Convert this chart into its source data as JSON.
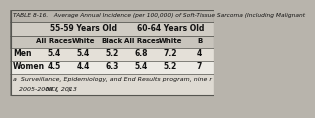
{
  "title": "TABLE 8-16.   Average Annual Incidence (per 100,000) of Soft-Tissue Sarcoma (Including Malignant",
  "bg_title": "#b8b4ac",
  "bg_header": "#d0ccc4",
  "bg_subheader": "#c8c4bc",
  "bg_row1": "#e4e0d8",
  "bg_row2": "#eceae4",
  "bg_footnote": "#dedad2",
  "border_color": "#555550",
  "text_color": "#111111",
  "title_fontsize": 4.2,
  "header_fontsize": 5.5,
  "subheader_fontsize": 5.0,
  "data_fontsize": 5.5,
  "footnote_fontsize": 4.5,
  "group_labels": [
    "55-59 Years Old",
    "60-64 Years Old"
  ],
  "sub_cols": [
    "All Races",
    "White",
    "Black",
    "All Races",
    "White",
    "B"
  ],
  "rows": [
    {
      "label": "Men",
      "values": [
        "5.4",
        "5.4",
        "5.2",
        "6.8",
        "7.2",
        "4"
      ]
    },
    {
      "label": "Women",
      "values": [
        "4.5",
        "4.4",
        "6.3",
        "5.4",
        "5.2",
        "7"
      ]
    }
  ],
  "footnote_line1": "a  Surveillance, Epidemiology, and End Results program, nine r",
  "footnote_line2": "   2005-2009 (NCI, 2013)."
}
